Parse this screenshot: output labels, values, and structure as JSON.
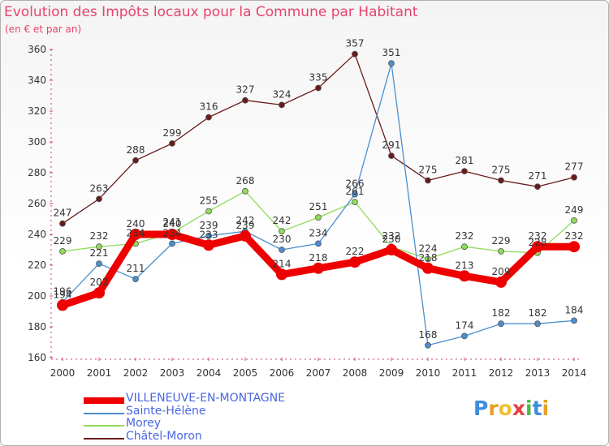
{
  "chart_data": {
    "type": "line",
    "title": "Evolution des Impôts locaux pour la Commune par Habitant",
    "subtitle": "(en € et par an)",
    "x": [
      "2000",
      "2001",
      "2002",
      "2003",
      "2004",
      "2005",
      "2006",
      "2007",
      "2008",
      "2009",
      "2010",
      "2011",
      "2012",
      "2013",
      "2014"
    ],
    "ylim": [
      160,
      360
    ],
    "yticks": [
      160,
      180,
      200,
      220,
      240,
      260,
      280,
      300,
      320,
      340,
      360
    ],
    "grid": false,
    "series": [
      {
        "name": "Châtel-Moron",
        "color": "#6b1a1a",
        "values": [
          247,
          263,
          288,
          299,
          316,
          327,
          324,
          335,
          357,
          291,
          275,
          281,
          275,
          271,
          277
        ]
      },
      {
        "name": "Morey",
        "color": "#8fdc5a",
        "values": [
          229,
          232,
          234,
          241,
          255,
          268,
          242,
          251,
          261,
          232,
          224,
          232,
          229,
          228,
          249
        ]
      },
      {
        "name": "Sainte-Hélène",
        "color": "#4a8fd0",
        "values": [
          196,
          221,
          211,
          234,
          239,
          242,
          230,
          234,
          266,
          351,
          168,
          174,
          182,
          182,
          184
        ]
      },
      {
        "name": "VILLENEUVE-EN-MONTAGNE",
        "color": "#ee0000",
        "values": [
          194,
          202,
          240,
          240,
          233,
          239,
          214,
          218,
          222,
          230,
          218,
          213,
          209,
          232,
          232
        ]
      }
    ],
    "point_labels": [
      {
        "series": "Châtel-Moron",
        "values": [
          247,
          263,
          288,
          299,
          316,
          327,
          324,
          335,
          357,
          291,
          275,
          281,
          275,
          271,
          277
        ]
      },
      {
        "series": "Morey",
        "values": [
          229,
          232,
          234,
          241,
          255,
          268,
          242,
          251,
          261,
          232,
          224,
          232,
          229,
          228,
          249
        ]
      },
      {
        "series": "Sainte-Hélène",
        "values": [
          196,
          221,
          211,
          234,
          239,
          242,
          230,
          234,
          266,
          351,
          168,
          174,
          182,
          182,
          184
        ]
      },
      {
        "series": "VILLENEUVE-EN-MONTAGNE",
        "values": [
          194,
          202,
          240,
          240,
          233,
          239,
          214,
          218,
          222,
          230,
          218,
          213,
          209,
          232,
          232
        ]
      }
    ]
  },
  "legend": {
    "items": [
      {
        "label": "VILLENEUVE-EN-MONTAGNE",
        "color": "#ee0000"
      },
      {
        "label": "Sainte-Hélène",
        "color": "#4a8fd0"
      },
      {
        "label": "Morey",
        "color": "#8fdc5a"
      },
      {
        "label": "Châtel-Moron",
        "color": "#6b1a1a"
      }
    ]
  },
  "logo": {
    "letters": [
      "P",
      "r",
      "o",
      "x",
      "i",
      "t",
      "i"
    ],
    "colors": [
      "#3d8ee0",
      "#e8a020",
      "#f0c030",
      "#e84040",
      "#50b848",
      "#3d8ee0",
      "#e8a020"
    ]
  }
}
